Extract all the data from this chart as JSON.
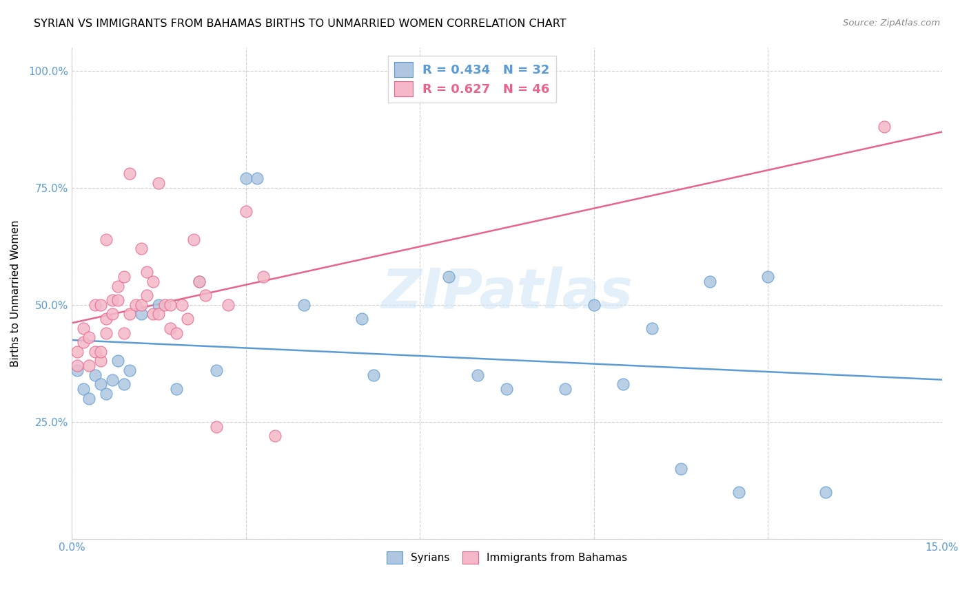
{
  "title": "SYRIAN VS IMMIGRANTS FROM BAHAMAS BIRTHS TO UNMARRIED WOMEN CORRELATION CHART",
  "source": "Source: ZipAtlas.com",
  "ylabel_label": "Births to Unmarried Women",
  "xlim": [
    0.0,
    0.15
  ],
  "ylim": [
    0.0,
    1.05
  ],
  "xtick_vals": [
    0.0,
    0.03,
    0.06,
    0.09,
    0.12,
    0.15
  ],
  "xtick_labels": [
    "0.0%",
    "",
    "",
    "",
    "",
    "15.0%"
  ],
  "ytick_vals": [
    0.0,
    0.25,
    0.5,
    0.75,
    1.0
  ],
  "ytick_labels": [
    "",
    "25.0%",
    "50.0%",
    "75.0%",
    "100.0%"
  ],
  "syrians_color": "#aec6e0",
  "bahamas_color": "#f4b8c8",
  "trend_syrian_color": "#5b9bd5",
  "trend_bahamas_color": "#e8648a",
  "tick_color": "#5b9bd5",
  "R_syrian": 0.434,
  "N_syrian": 32,
  "R_bahamas": 0.627,
  "N_bahamas": 46,
  "legend_label_syrian": "Syrians",
  "legend_label_bahamas": "Immigrants from Bahamas",
  "watermark": "ZIPatlas",
  "syrians_x": [
    0.001,
    0.002,
    0.003,
    0.004,
    0.005,
    0.006,
    0.007,
    0.008,
    0.009,
    0.01,
    0.012,
    0.015,
    0.018,
    0.022,
    0.025,
    0.03,
    0.032,
    0.04,
    0.05,
    0.052,
    0.065,
    0.07,
    0.075,
    0.085,
    0.09,
    0.095,
    0.1,
    0.105,
    0.11,
    0.115,
    0.12,
    0.13
  ],
  "syrians_y": [
    0.36,
    0.32,
    0.3,
    0.35,
    0.33,
    0.31,
    0.34,
    0.38,
    0.33,
    0.36,
    0.48,
    0.5,
    0.32,
    0.55,
    0.36,
    0.77,
    0.77,
    0.5,
    0.47,
    0.35,
    0.56,
    0.35,
    0.32,
    0.32,
    0.5,
    0.33,
    0.45,
    0.15,
    0.55,
    0.1,
    0.56,
    0.1
  ],
  "bahamas_x": [
    0.001,
    0.001,
    0.002,
    0.002,
    0.003,
    0.003,
    0.004,
    0.004,
    0.005,
    0.005,
    0.005,
    0.006,
    0.006,
    0.006,
    0.007,
    0.007,
    0.008,
    0.008,
    0.009,
    0.009,
    0.01,
    0.01,
    0.011,
    0.012,
    0.012,
    0.013,
    0.013,
    0.014,
    0.014,
    0.015,
    0.015,
    0.016,
    0.017,
    0.017,
    0.018,
    0.019,
    0.02,
    0.021,
    0.022,
    0.023,
    0.025,
    0.027,
    0.03,
    0.033,
    0.035,
    0.14
  ],
  "bahamas_y": [
    0.37,
    0.4,
    0.42,
    0.45,
    0.37,
    0.43,
    0.4,
    0.5,
    0.5,
    0.38,
    0.4,
    0.64,
    0.44,
    0.47,
    0.48,
    0.51,
    0.51,
    0.54,
    0.56,
    0.44,
    0.48,
    0.78,
    0.5,
    0.5,
    0.62,
    0.52,
    0.57,
    0.48,
    0.55,
    0.76,
    0.48,
    0.5,
    0.5,
    0.45,
    0.44,
    0.5,
    0.47,
    0.64,
    0.55,
    0.52,
    0.24,
    0.5,
    0.7,
    0.56,
    0.22,
    0.88
  ]
}
